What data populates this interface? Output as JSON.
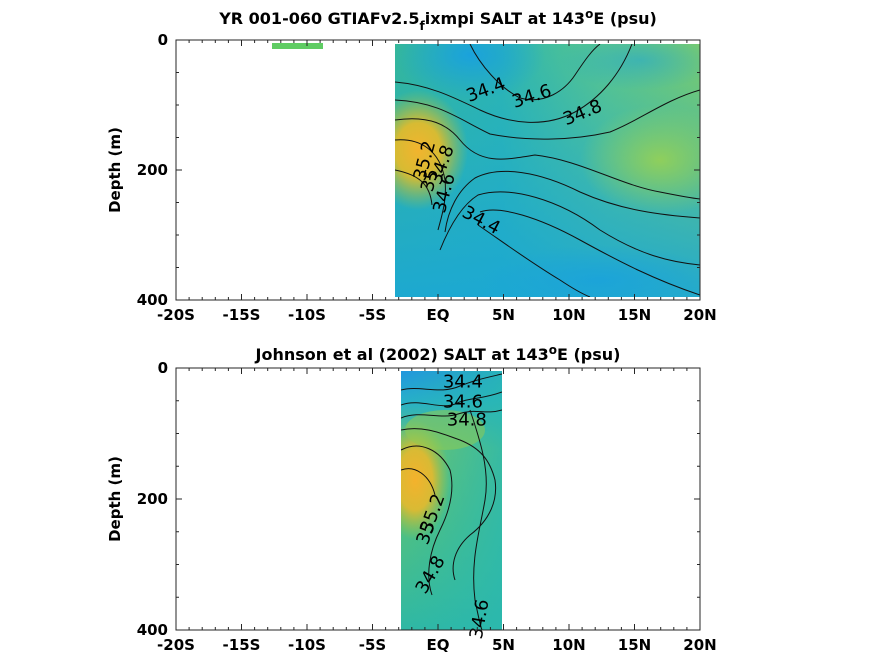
{
  "chart_data": [
    {
      "type": "heatmap",
      "title_main": "YR 001-060 GTIAFv2.5",
      "title_sub": "f",
      "title_rest": "ixmpi SALT at 143",
      "title_deg": "o",
      "title_end": "E (psu)",
      "ylabel": "Depth (m)",
      "xlim": [
        -20,
        20
      ],
      "ylim": [
        0,
        400
      ],
      "xticks": [
        -20,
        -15,
        -10,
        -5,
        0,
        5,
        10,
        15,
        20
      ],
      "xticklabels": [
        "-20S",
        "-15S",
        "-10S",
        "-5S",
        "EQ",
        "5N",
        "10N",
        "15N",
        "20N"
      ],
      "yticks": [
        0,
        200,
        400
      ],
      "yticklabels": [
        "0",
        "200",
        "400"
      ],
      "data_extent": {
        "lon": [
          -3,
          20
        ],
        "depth": [
          5,
          395
        ]
      },
      "extra_patch": {
        "lon": [
          -12,
          -9
        ],
        "depth": [
          5,
          12
        ],
        "color": "#5fcc63"
      },
      "contour_labels": [
        {
          "text": "34.4",
          "lon": 3.8,
          "depth": 85
        },
        {
          "text": "34.6",
          "lon": 7.3,
          "depth": 95
        },
        {
          "text": "34.8",
          "lon": 11.2,
          "depth": 120
        },
        {
          "text": "35.2",
          "lon": -0.6,
          "depth": 188
        },
        {
          "text": "35",
          "lon": -0.2,
          "depth": 218
        },
        {
          "text": "34.8",
          "lon": 0.7,
          "depth": 195
        },
        {
          "text": "34.6",
          "lon": 0.9,
          "depth": 238
        },
        {
          "text": "34.4",
          "lon": 3.1,
          "depth": 285
        }
      ]
    },
    {
      "type": "heatmap",
      "title_main": "Johnson et al (2002) SALT at 143",
      "title_deg": "o",
      "title_end": "E (psu)",
      "ylabel": "Depth (m)",
      "xlim": [
        -20,
        20
      ],
      "ylim": [
        0,
        400
      ],
      "xticks": [
        -20,
        -15,
        -10,
        -5,
        0,
        5,
        10,
        15,
        20
      ],
      "xticklabels": [
        "-20S",
        "-15S",
        "-10S",
        "-5S",
        "EQ",
        "5N",
        "10N",
        "15N",
        "20N"
      ],
      "yticks": [
        0,
        200,
        400
      ],
      "yticklabels": [
        "0",
        "200",
        "400"
      ],
      "data_extent": {
        "lon": [
          -3,
          5
        ],
        "depth": [
          5,
          400
        ]
      },
      "contour_labels": [
        {
          "text": "34.4",
          "lon": 1.9,
          "depth": 30
        },
        {
          "text": "34.6",
          "lon": 1.9,
          "depth": 60
        },
        {
          "text": "34.8",
          "lon": 2.2,
          "depth": 88
        },
        {
          "text": "35.2",
          "lon": 0.0,
          "depth": 225
        },
        {
          "text": "35",
          "lon": -0.5,
          "depth": 255
        },
        {
          "text": "34.8",
          "lon": -0.2,
          "depth": 320
        },
        {
          "text": "34.6",
          "lon": 3.6,
          "depth": 385
        }
      ]
    }
  ]
}
